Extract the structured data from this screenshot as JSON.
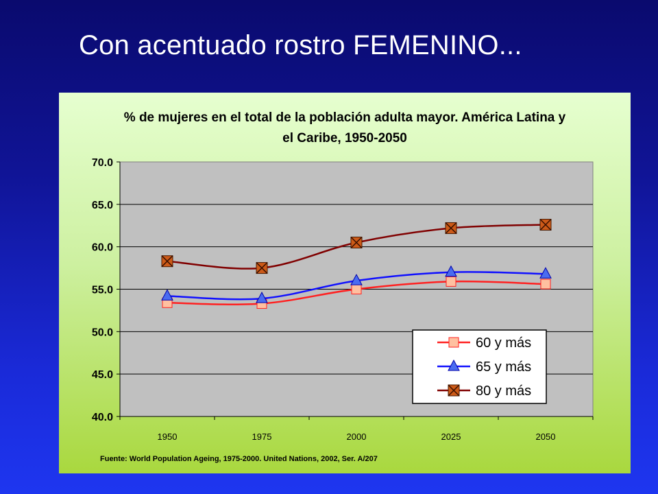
{
  "slide": {
    "title": "Con acentuado rostro FEMENINO..."
  },
  "chart_data": {
    "type": "line",
    "title_line1": "% de mujeres en el total de la población adulta mayor. América Latina y",
    "title_line2": "el Caribe, 1950-2050",
    "categories": [
      "1950",
      "1975",
      "2000",
      "2025",
      "2050"
    ],
    "y_ticks": [
      "40.0",
      "45.0",
      "50.0",
      "55.0",
      "60.0",
      "65.0",
      "70.0"
    ],
    "ylim": [
      40,
      70
    ],
    "grid": true,
    "legend_position": "bottom-right",
    "series": [
      {
        "name": "60 y más",
        "values": [
          53.4,
          53.3,
          55.0,
          55.9,
          55.6
        ],
        "color": "#ff2020",
        "marker": "square",
        "marker_fill": "#ffc0a0"
      },
      {
        "name": "65 y más",
        "values": [
          54.2,
          53.9,
          56.0,
          57.0,
          56.8
        ],
        "color": "#1010ff",
        "marker": "triangle",
        "marker_fill": "#4a6cf0"
      },
      {
        "name": "80 y más",
        "values": [
          58.3,
          57.5,
          60.5,
          62.2,
          62.6
        ],
        "color": "#800000",
        "marker": "x-square",
        "marker_fill": "#cc5a18"
      }
    ],
    "source": "Fuente: World Population Ageing, 1975-2000. United Nations, 2002, Ser. A/207"
  }
}
